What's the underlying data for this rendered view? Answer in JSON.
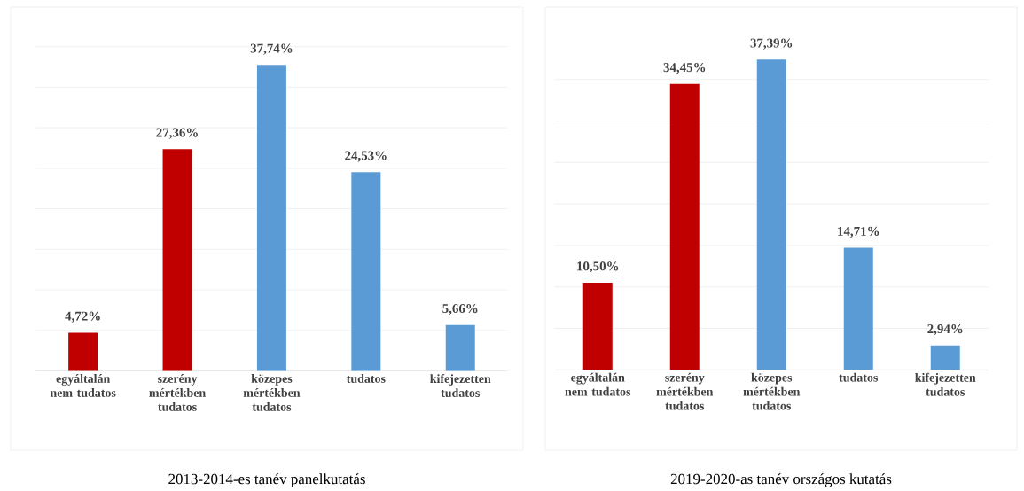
{
  "chart_data": [
    {
      "type": "bar",
      "title": "2013-2014-es tanév panelkutatás",
      "categories": [
        "egyáltalán nem tudatos",
        "szerény mértékben tudatos",
        "közepes mértékben tudatos",
        "tudatos",
        "kifejezetten tudatos"
      ],
      "values": [
        4.72,
        27.36,
        37.74,
        24.53,
        5.66
      ],
      "colors": [
        "#c00000",
        "#c00000",
        "#5b9bd5",
        "#5b9bd5",
        "#5b9bd5"
      ],
      "value_labels": [
        "4,72%",
        "27,36%",
        "37,74%",
        "24,53%",
        "5,66%"
      ],
      "grid": "y",
      "tick_labels": "x"
    },
    {
      "type": "bar",
      "title": "2019-2020-as tanév országos kutatás",
      "categories": [
        "egyáltalán nem tudatos",
        "szerény mértékben tudatos",
        "közepes mértékben tudatos",
        "tudatos",
        "kifejezetten tudatos"
      ],
      "values": [
        10.5,
        34.45,
        37.39,
        14.71,
        2.94
      ],
      "colors": [
        "#c00000",
        "#c00000",
        "#5b9bd5",
        "#5b9bd5",
        "#5b9bd5"
      ],
      "value_labels": [
        "10,50%",
        "34,45%",
        "37,39%",
        "14,71%",
        "2,94%"
      ],
      "grid": "y",
      "tick_labels": "x"
    }
  ]
}
